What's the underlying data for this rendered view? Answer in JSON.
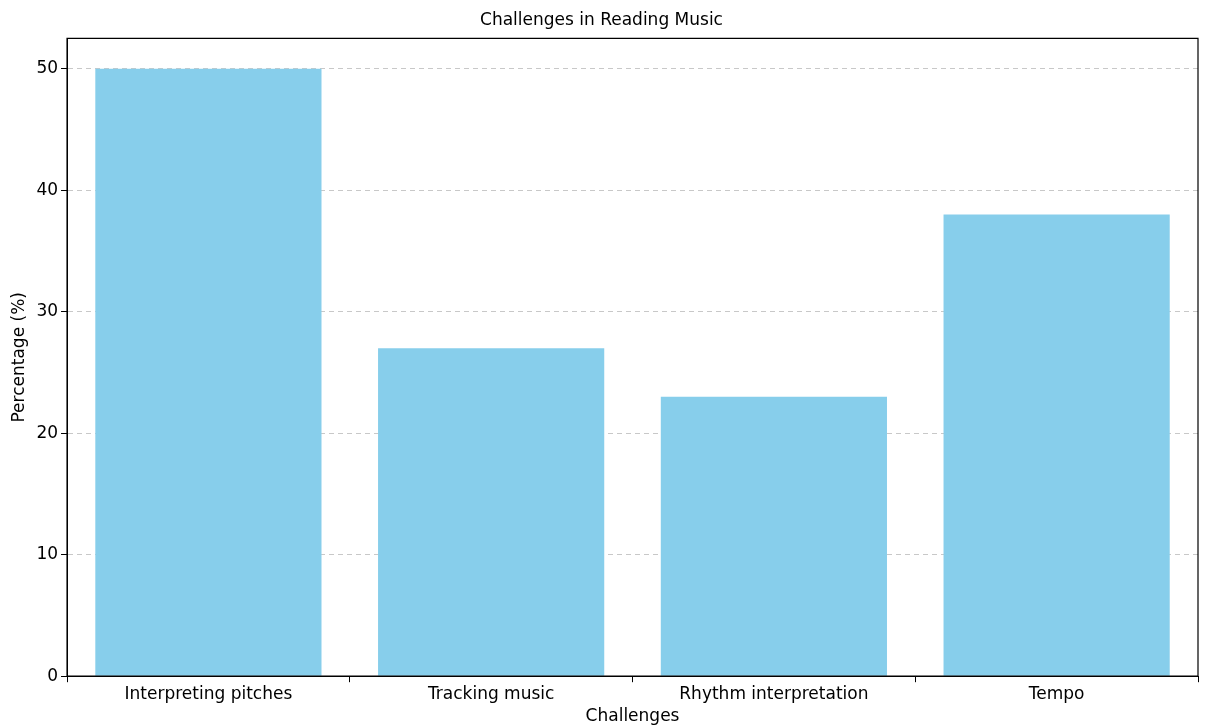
{
  "chart_data": {
    "type": "bar",
    "title": "Challenges in Reading Music",
    "xlabel": "Challenges",
    "ylabel": "Percentage (%)",
    "categories": [
      "Interpreting pitches",
      "Tracking music",
      "Rhythm interpretation",
      "Tempo"
    ],
    "values": [
      50,
      27,
      23,
      38
    ],
    "color": "#87ceeb",
    "ylim": [
      0,
      52.5
    ],
    "yticks": [
      0,
      10,
      20,
      30,
      40,
      50
    ],
    "grid": "y"
  }
}
